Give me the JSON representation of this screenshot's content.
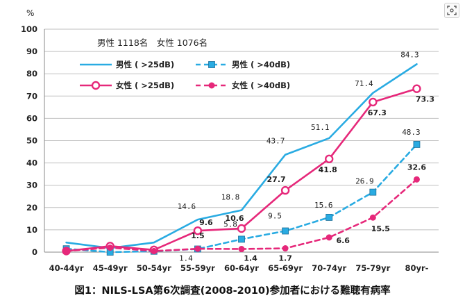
{
  "caption": "図1：NILS-LSA第6次調査(2008-2010)参加者における難聴有病率",
  "corner_button_icon": "scan-icon",
  "chart_data": {
    "type": "line",
    "ylabel": "%",
    "ylim": [
      0,
      100
    ],
    "yticks": [
      0,
      10,
      20,
      30,
      40,
      50,
      60,
      70,
      80,
      90,
      100
    ],
    "grid": true,
    "categories": [
      "40-44yr",
      "45-49yr",
      "50-54yr",
      "55-59yr",
      "60-64yr",
      "65-69yr",
      "70-74yr",
      "75-79yr",
      "80yr-"
    ],
    "sample_note": "男性 1118名　女性 1076名",
    "series": [
      {
        "name": "男性 ( >25dB)",
        "color": "#29ABE2",
        "dash": false,
        "marker": "none",
        "values": [
          4.3,
          1.8,
          4.3,
          14.6,
          18.8,
          43.7,
          51.1,
          71.4,
          84.3
        ],
        "labels": [
          "",
          "",
          "",
          "14.6",
          "18.8",
          "43.7",
          "51.1",
          "71.4",
          "84.3"
        ]
      },
      {
        "name": "男性 ( >40dB)",
        "color": "#29ABE2",
        "dash": true,
        "marker": "square",
        "values": [
          1.5,
          0,
          0.4,
          1.4,
          5.8,
          9.5,
          15.6,
          26.9,
          48.3
        ],
        "labels": [
          "",
          "",
          "",
          "1.4",
          "5.8",
          "9.5",
          "15.6",
          "26.9",
          "48.3"
        ]
      },
      {
        "name": "女性 ( >25dB)",
        "color": "#E6287A",
        "dash": false,
        "marker": "circle-open",
        "values": [
          0.5,
          2.7,
          1.0,
          9.6,
          10.6,
          27.7,
          41.8,
          67.3,
          73.3
        ],
        "labels": [
          "",
          "",
          "",
          "9.6",
          "10.6",
          "27.7",
          "41.8",
          "67.3",
          "73.3"
        ]
      },
      {
        "name": "女性 ( >40dB)",
        "color": "#E6287A",
        "dash": true,
        "marker": "circle-filled",
        "values": [
          0.5,
          2.0,
          0.5,
          1.5,
          1.4,
          1.7,
          6.6,
          15.5,
          32.6
        ],
        "labels": [
          "",
          "",
          "",
          "1.5",
          "1.4",
          "1.7",
          "6.6",
          "15.5",
          "32.6"
        ]
      }
    ]
  }
}
